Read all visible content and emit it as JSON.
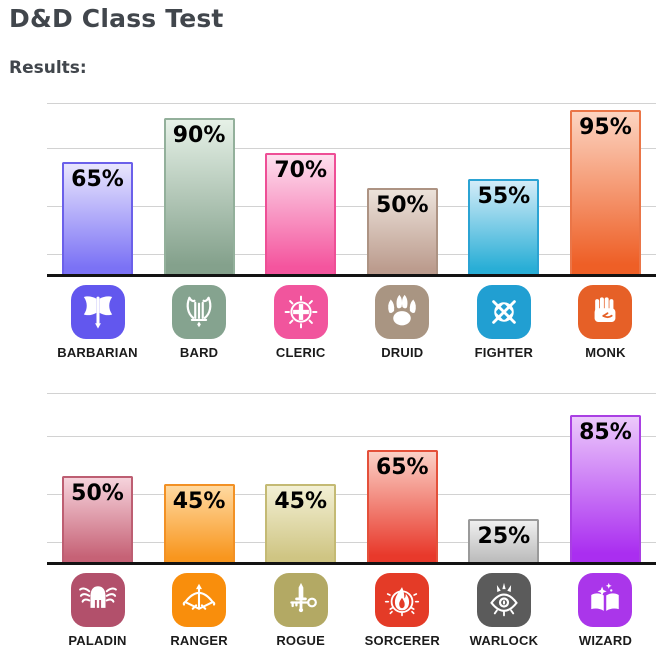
{
  "page": {
    "title": "D&D Class Test",
    "results_label": "Results:"
  },
  "colors": {
    "title_text": "#41464c",
    "axis_line": "#131313",
    "gridline": "#d2d2d2",
    "value_text": "#000000",
    "label_text": "#1b1b1b"
  },
  "charts": [
    {
      "name": "top-classes-chart",
      "bars": [
        {
          "label": "BARBARIAN",
          "value": 65,
          "value_label": "65%",
          "icon": "axe-icon",
          "icon_bg": "#6257ee",
          "bar_light": "#e9e6fd",
          "bar_full": "#7b72f5",
          "bar_border": "#6b60ea"
        },
        {
          "label": "BARD",
          "value": 90,
          "value_label": "90%",
          "icon": "lyre-icon",
          "icon_bg": "#85a38f",
          "bar_light": "#e6f1e7",
          "bar_full": "#84a18c",
          "bar_border": "#93b09b"
        },
        {
          "label": "CLERIC",
          "value": 70,
          "value_label": "70%",
          "icon": "holy-symbol-icon",
          "icon_bg": "#f1559d",
          "bar_light": "#fde0ee",
          "bar_full": "#f4559e",
          "bar_border": "#ee4f96"
        },
        {
          "label": "DRUID",
          "value": 50,
          "value_label": "50%",
          "icon": "paw-icon",
          "icon_bg": "#a99582",
          "bar_light": "#ece2da",
          "bar_full": "#bc9c8e",
          "bar_border": "#ad9383"
        },
        {
          "label": "FIGHTER",
          "value": 55,
          "value_label": "55%",
          "icon": "crossed-swords-icon",
          "icon_bg": "#219fd2",
          "bar_light": "#d3ecf8",
          "bar_full": "#29aed6",
          "bar_border": "#2ba3d3"
        },
        {
          "label": "MONK",
          "value": 95,
          "value_label": "95%",
          "icon": "fist-icon",
          "icon_bg": "#e66027",
          "bar_light": "#fcd4c1",
          "bar_full": "#ee5f26",
          "bar_border": "#ea7547"
        }
      ]
    },
    {
      "name": "bottom-classes-chart",
      "bars": [
        {
          "label": "PALADIN",
          "value": 50,
          "value_label": "50%",
          "icon": "winged-helmet-icon",
          "icon_bg": "#b2506b",
          "bar_light": "#f6d3dc",
          "bar_full": "#c66276",
          "bar_border": "#bd5e72"
        },
        {
          "label": "RANGER",
          "value": 45,
          "value_label": "45%",
          "icon": "bow-arrow-icon",
          "icon_bg": "#f98e0c",
          "bar_light": "#ffd9a0",
          "bar_full": "#f8961e",
          "bar_border": "#f29125"
        },
        {
          "label": "ROGUE",
          "value": 45,
          "value_label": "45%",
          "icon": "dagger-key-icon",
          "icon_bg": "#b3a964",
          "bar_light": "#f3f0d4",
          "bar_full": "#cfc583",
          "bar_border": "#c4ba74"
        },
        {
          "label": "SORCERER",
          "value": 65,
          "value_label": "65%",
          "icon": "flame-icon",
          "icon_bg": "#e43b27",
          "bar_light": "#fbd0c6",
          "bar_full": "#e8392b",
          "bar_border": "#e4503a"
        },
        {
          "label": "WARLOCK",
          "value": 25,
          "value_label": "25%",
          "icon": "eye-icon",
          "icon_bg": "#5b5b5b",
          "bar_light": "#efefef",
          "bar_full": "#bebebe",
          "bar_border": "#9a9a9a"
        },
        {
          "label": "WIZARD",
          "value": 85,
          "value_label": "85%",
          "icon": "spellbook-icon",
          "icon_bg": "#aa36ea",
          "bar_light": "#ecc9fb",
          "bar_full": "#aa2ef0",
          "bar_border": "#a93fe3"
        }
      ]
    }
  ],
  "chart_data": [
    {
      "type": "bar",
      "title": "D&D Class Test — Results (upper chart)",
      "categories": [
        "BARBARIAN",
        "BARD",
        "CLERIC",
        "DRUID",
        "FIGHTER",
        "MONK"
      ],
      "values": [
        65,
        90,
        70,
        50,
        55,
        95
      ],
      "data_labels": [
        "65%",
        "90%",
        "70%",
        "50%",
        "55%",
        "95%"
      ],
      "xlabel": "",
      "ylabel": "",
      "unit": "%",
      "ylim": [
        0,
        105
      ],
      "grid": true,
      "legend": "none",
      "bar_colors": [
        "#7b72f5",
        "#84a18c",
        "#f4559e",
        "#bc9c8e",
        "#29aed6",
        "#ee5f26"
      ]
    },
    {
      "type": "bar",
      "title": "D&D Class Test — Results (lower chart)",
      "categories": [
        "PALADIN",
        "RANGER",
        "ROGUE",
        "SORCERER",
        "WARLOCK",
        "WIZARD"
      ],
      "values": [
        50,
        45,
        45,
        65,
        25,
        85
      ],
      "data_labels": [
        "50%",
        "45%",
        "45%",
        "65%",
        "25%",
        "85%"
      ],
      "xlabel": "",
      "ylabel": "",
      "unit": "%",
      "ylim": [
        0,
        101
      ],
      "grid": true,
      "legend": "none",
      "bar_colors": [
        "#c66276",
        "#f8961e",
        "#cfc583",
        "#e8392b",
        "#bebebe",
        "#aa2ef0"
      ]
    }
  ]
}
